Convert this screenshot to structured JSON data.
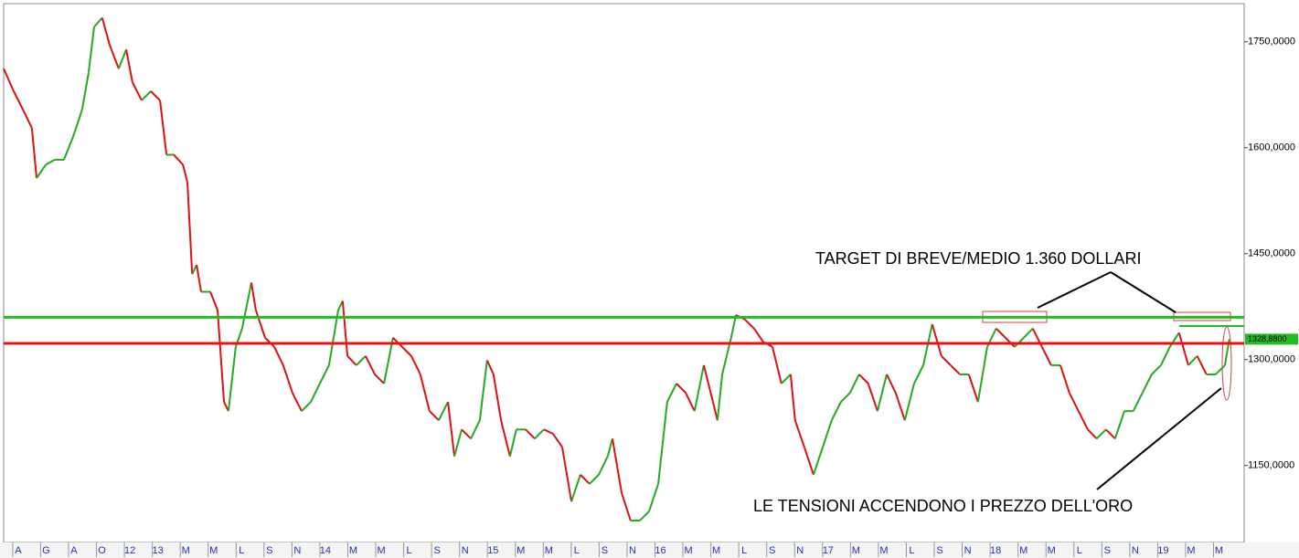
{
  "chart_data": {
    "type": "line",
    "categories": [
      "A",
      "G",
      "A",
      "O",
      "12",
      "13",
      "M",
      "M",
      "L",
      "S",
      "N",
      "14",
      "M",
      "M",
      "L",
      "S",
      "N",
      "15",
      "M",
      "M",
      "L",
      "S",
      "N",
      "16",
      "M",
      "M",
      "L",
      "S",
      "N",
      "17",
      "M",
      "M",
      "L",
      "S",
      "N",
      "18",
      "M",
      "M",
      "L",
      "S",
      "N",
      "19",
      "M",
      "M"
    ],
    "x": [
      -0.52,
      -0.16,
      0.17,
      0.49,
      0.66,
      0.99,
      1.31,
      1.64,
      1.97,
      2.29,
      2.52,
      2.72,
      3.01,
      3.28,
      3.6,
      3.87,
      4.09,
      4.42,
      4.75,
      5.08,
      5.31,
      5.57,
      5.9,
      6.06,
      6.23,
      6.39,
      6.55,
      6.88,
      7.14,
      7.37,
      7.53,
      7.79,
      8.02,
      8.35,
      8.51,
      8.84,
      9.17,
      9.49,
      9.82,
      10.15,
      10.48,
      10.8,
      11.13,
      11.46,
      11.62,
      11.79,
      12.11,
      12.44,
      12.77,
      13.1,
      13.42,
      13.75,
      14.08,
      14.4,
      14.73,
      15.06,
      15.39,
      15.62,
      15.88,
      16.21,
      16.53,
      16.79,
      17.02,
      17.29,
      17.61,
      17.84,
      18.17,
      18.5,
      18.82,
      19.15,
      19.48,
      19.81,
      20.13,
      20.46,
      20.79,
      21.11,
      21.28,
      21.61,
      21.93,
      22.26,
      22.59,
      22.92,
      23.24,
      23.57,
      23.9,
      24.22,
      24.55,
      24.88,
      25.04,
      25.21,
      25.53,
      25.7,
      26.02,
      26.35,
      26.68,
      27.01,
      27.33,
      27.66,
      27.82,
      28.15,
      28.48,
      28.81,
      29.13,
      29.46,
      29.79,
      30.11,
      30.44,
      30.77,
      31.1,
      31.42,
      31.75,
      32.08,
      32.41,
      32.73,
      33.06,
      33.39,
      33.72,
      34.04,
      34.37,
      34.7,
      35.02,
      35.35,
      35.68,
      36.01,
      36.33,
      36.66,
      36.99,
      37.32,
      37.64,
      37.97,
      38.3,
      38.62,
      38.95,
      39.28,
      39.61,
      39.93,
      40.26,
      40.59,
      40.92,
      41.24,
      41.57,
      41.9,
      42.22,
      42.55,
      42.88,
      43.21,
      43.37
    ],
    "values": [
      1712,
      1680,
      1654,
      1628,
      1557,
      1576,
      1583,
      1583,
      1616,
      1654,
      1706,
      1771,
      1784,
      1745,
      1712,
      1739,
      1693,
      1667,
      1680,
      1667,
      1590,
      1590,
      1576,
      1551,
      1421,
      1434,
      1396,
      1396,
      1370,
      1240,
      1227,
      1318,
      1344,
      1409,
      1370,
      1331,
      1318,
      1292,
      1253,
      1227,
      1240,
      1266,
      1292,
      1370,
      1383,
      1305,
      1292,
      1305,
      1279,
      1266,
      1331,
      1318,
      1305,
      1279,
      1227,
      1214,
      1240,
      1163,
      1201,
      1188,
      1214,
      1299,
      1279,
      1214,
      1163,
      1201,
      1201,
      1188,
      1201,
      1195,
      1176,
      1099,
      1137,
      1124,
      1137,
      1163,
      1188,
      1111,
      1072,
      1072,
      1085,
      1124,
      1240,
      1266,
      1253,
      1227,
      1292,
      1240,
      1214,
      1279,
      1331,
      1363,
      1357,
      1344,
      1325,
      1318,
      1266,
      1279,
      1214,
      1176,
      1137,
      1176,
      1214,
      1240,
      1253,
      1279,
      1266,
      1227,
      1279,
      1253,
      1214,
      1266,
      1292,
      1350,
      1305,
      1292,
      1279,
      1279,
      1240,
      1318,
      1344,
      1331,
      1318,
      1331,
      1344,
      1318,
      1292,
      1292,
      1253,
      1227,
      1201,
      1188,
      1201,
      1188,
      1227,
      1227,
      1253,
      1279,
      1292,
      1318,
      1338,
      1292,
      1305,
      1279,
      1279,
      1292,
      1328.88
    ],
    "up_color": "#22aa22",
    "down_color": "#dd1111",
    "xlim": [
      -0.52,
      43.9
    ],
    "ylim": [
      1041,
      1804
    ],
    "yticks": [
      {
        "value": 1150,
        "label": "1150,0000"
      },
      {
        "value": 1300,
        "label": "1300,0000"
      },
      {
        "value": 1450,
        "label": "1450,0000"
      },
      {
        "value": 1600,
        "label": "1600,0000"
      },
      {
        "value": 1750,
        "label": "1750,0000"
      }
    ],
    "hlines": [
      {
        "value": 1360,
        "color": "#22bb22"
      },
      {
        "value": 1323,
        "color": "#ee1111"
      }
    ],
    "last_price": {
      "value": 1328.88,
      "label": "1328,8800",
      "color": "#22bb22"
    },
    "year_color": "#cc22cc",
    "annotations": [
      "TARGET DI BREVE/MEDIO 1.360 DOLLARI",
      "LE TENSIONI ACCENDONO I PREZZO DELL'ORO"
    ]
  }
}
